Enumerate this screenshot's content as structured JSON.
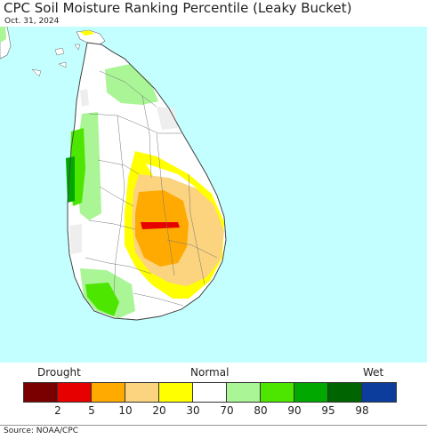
{
  "title": "CPC Soil Moisture Ranking Percentile (Leaky Bucket)",
  "date": "Oct. 31, 2024",
  "legend": {
    "left_label": "Drought",
    "center_label": "Normal",
    "right_label": "Wet",
    "colors": [
      "#7a0000",
      "#e60000",
      "#ffaa00",
      "#fcd37f",
      "#ffff00",
      "#ffffff",
      "#aaf596",
      "#4ce600",
      "#00a800",
      "#006400",
      "#0c3c9c"
    ],
    "ticks": [
      "2",
      "5",
      "10",
      "20",
      "30",
      "70",
      "80",
      "90",
      "95",
      "98"
    ]
  },
  "map_colors": {
    "ocean": "#c3ffff",
    "land": "#ffffff",
    "border": "#666666"
  },
  "source": "Source: NOAA/CPC"
}
